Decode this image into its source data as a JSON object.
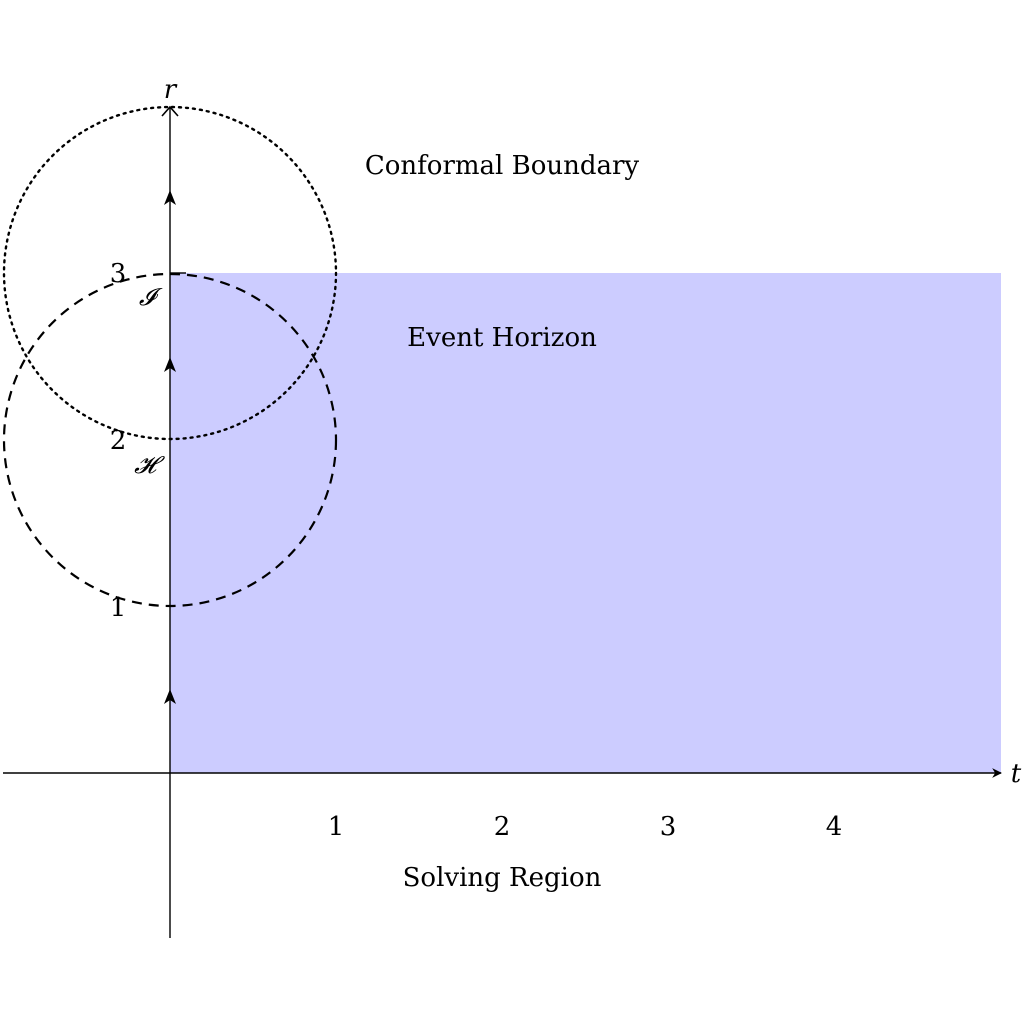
{
  "axes": {
    "t_label": "t",
    "r_label": "r",
    "t_ticks": [
      "1",
      "2",
      "3",
      "4"
    ],
    "r_ticks": [
      "1",
      "2",
      "3"
    ]
  },
  "annotations": {
    "conformal_boundary": "Conformal Boundary",
    "event_horizon": "Event Horizon",
    "solving_region": "Solving Region",
    "horizon_symbol": "𝓗",
    "scri_symbol": "𝓘"
  },
  "colors": {
    "region_fill": "#ccccff",
    "ink": "#000000"
  }
}
